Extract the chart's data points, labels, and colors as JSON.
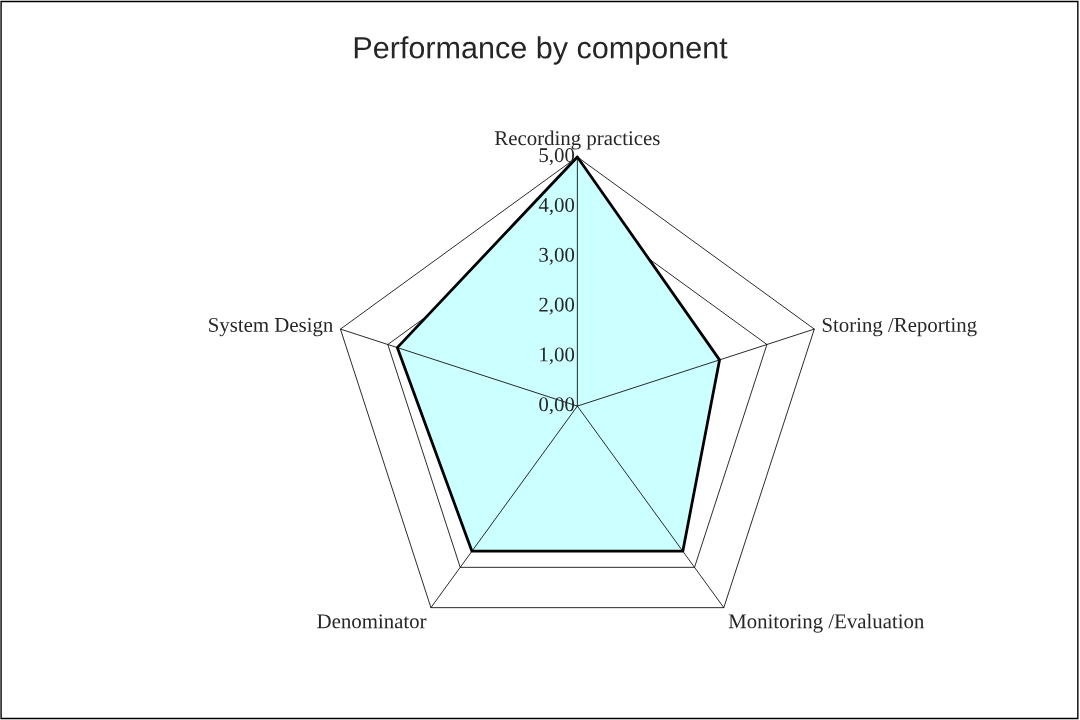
{
  "chart_data": {
    "type": "radar",
    "title": "Performance by component",
    "categories": [
      "Recording practices",
      "Storing /Reporting",
      "Monitoring /Evaluation",
      "Denominator",
      "System Design"
    ],
    "series": [
      {
        "color": "#ccffff",
        "values": [
          5.0,
          3.0,
          3.6,
          3.6,
          3.8
        ]
      }
    ],
    "ylim": [
      0,
      5
    ],
    "yticks": [
      {
        "value": 0,
        "label": "0,00"
      },
      {
        "value": 1,
        "label": "1,00"
      },
      {
        "value": 2,
        "label": "2,00"
      },
      {
        "value": 3,
        "label": "3,00"
      },
      {
        "value": 4,
        "label": "4,00"
      },
      {
        "value": 5,
        "label": "5,00"
      }
    ]
  }
}
